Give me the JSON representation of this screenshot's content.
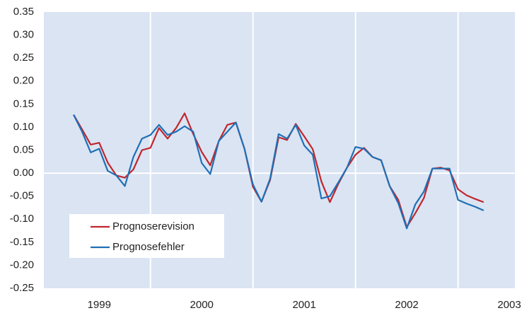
{
  "chart_data": {
    "type": "line",
    "x": [
      1998.75,
      1998.833,
      1998.917,
      1999,
      1999.083,
      1999.167,
      1999.25,
      1999.333,
      1999.417,
      1999.5,
      1999.583,
      1999.667,
      1999.75,
      1999.833,
      1999.917,
      2000,
      2000.083,
      2000.167,
      2000.25,
      2000.333,
      2000.417,
      2000.5,
      2000.583,
      2000.667,
      2000.75,
      2000.833,
      2000.917,
      2001,
      2001.083,
      2001.167,
      2001.25,
      2001.333,
      2001.417,
      2001.5,
      2001.583,
      2001.667,
      2001.75,
      2001.833,
      2001.917,
      2002,
      2002.083,
      2002.167,
      2002.25,
      2002.333,
      2002.417,
      2002.5,
      2002.583,
      2002.667,
      2002.75
    ],
    "series": [
      {
        "name": "Prognoserevision",
        "color": "#c0272d",
        "values": [
          0.127,
          0.095,
          0.062,
          0.066,
          0.023,
          -0.005,
          -0.01,
          0.008,
          0.05,
          0.055,
          0.098,
          0.075,
          0.098,
          0.13,
          0.085,
          0.046,
          0.017,
          0.07,
          0.105,
          0.11,
          0.053,
          -0.03,
          -0.062,
          -0.015,
          0.078,
          0.072,
          0.107,
          0.08,
          0.052,
          -0.018,
          -0.063,
          -0.023,
          0.012,
          0.04,
          0.055,
          0.035,
          0.028,
          -0.028,
          -0.058,
          -0.117,
          -0.087,
          -0.054,
          0.01,
          0.012,
          0.006,
          -0.035,
          -0.048,
          -0.056,
          -0.063
        ]
      },
      {
        "name": "Prognosefehler",
        "color": "#1f6fb5",
        "values": [
          0.127,
          0.09,
          0.045,
          0.053,
          0.005,
          -0.005,
          -0.028,
          0.035,
          0.075,
          0.083,
          0.105,
          0.083,
          0.09,
          0.102,
          0.09,
          0.022,
          -0.002,
          0.07,
          0.09,
          0.11,
          0.053,
          -0.025,
          -0.062,
          -0.012,
          0.085,
          0.075,
          0.105,
          0.06,
          0.04,
          -0.055,
          -0.05,
          -0.02,
          0.012,
          0.057,
          0.053,
          0.035,
          0.028,
          -0.028,
          -0.065,
          -0.12,
          -0.068,
          -0.04,
          0.01,
          0.01,
          0.01,
          -0.058,
          -0.066,
          -0.073,
          -0.081
        ]
      }
    ],
    "xlim": [
      1998.46,
      2003.055
    ],
    "xticks": [
      1999,
      2000,
      2001,
      2002,
      2003
    ],
    "ylim": [
      -0.25,
      0.35
    ],
    "yticks": [
      0.35,
      {
        "value": 0.3,
        "label": "0.30"
      },
      0.25,
      {
        "value": 0.2,
        "label": "0.20"
      },
      0.15,
      {
        "value": 0.1,
        "label": "0.10"
      },
      0.05,
      {
        "value": 0,
        "label": "0.00"
      },
      -0.05,
      {
        "value": -0.1,
        "label": "-0.10"
      },
      -0.15,
      {
        "value": -0.2,
        "label": "-0.20"
      },
      -0.25
    ],
    "grid": "x",
    "background": "#dae4f3",
    "legend": "lower left"
  }
}
